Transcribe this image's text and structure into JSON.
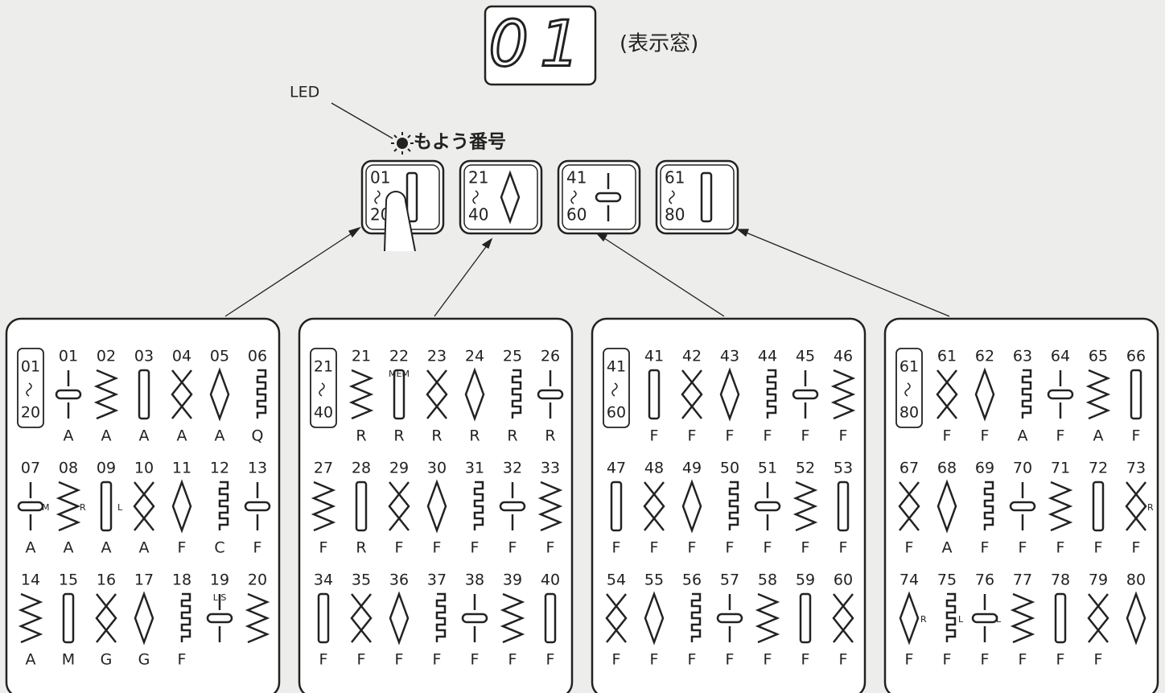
{
  "display": {
    "value": "01",
    "label": "(表示窓)"
  },
  "led_label": "LED",
  "pattern_label": "もよう番号",
  "buttons": [
    {
      "from": "01",
      "to": "20"
    },
    {
      "from": "21",
      "to": "40"
    },
    {
      "from": "41",
      "to": "60"
    },
    {
      "from": "61",
      "to": "80"
    }
  ],
  "panels": [
    {
      "from": "01",
      "to": "20",
      "patterns": [
        {
          "number": "01",
          "letter": "A"
        },
        {
          "number": "02",
          "letter": "A"
        },
        {
          "number": "03",
          "letter": "A"
        },
        {
          "number": "04",
          "letter": "A"
        },
        {
          "number": "05",
          "letter": "A"
        },
        {
          "number": "06",
          "letter": "Q"
        },
        {
          "number": "07",
          "letter": "A",
          "note": "M"
        },
        {
          "number": "08",
          "letter": "A",
          "note": "R"
        },
        {
          "number": "09",
          "letter": "A",
          "note": "L"
        },
        {
          "number": "10",
          "letter": "A"
        },
        {
          "number": "11",
          "letter": "F"
        },
        {
          "number": "12",
          "letter": "C"
        },
        {
          "number": "13",
          "letter": "F"
        },
        {
          "number": "14",
          "letter": "A"
        },
        {
          "number": "15",
          "letter": "M"
        },
        {
          "number": "16",
          "letter": "G"
        },
        {
          "number": "17",
          "letter": "G"
        },
        {
          "number": "18",
          "letter": "F"
        },
        {
          "number": "19",
          "note": "L.S"
        },
        {
          "number": "20"
        }
      ]
    },
    {
      "from": "21",
      "to": "40",
      "patterns": [
        {
          "number": "21",
          "letter": "R"
        },
        {
          "number": "22",
          "letter": "R",
          "note": "MEM"
        },
        {
          "number": "23",
          "letter": "R"
        },
        {
          "number": "24",
          "letter": "R"
        },
        {
          "number": "25",
          "letter": "R"
        },
        {
          "number": "26",
          "letter": "R"
        },
        {
          "number": "27",
          "letter": "F"
        },
        {
          "number": "28",
          "letter": "R"
        },
        {
          "number": "29",
          "letter": "F"
        },
        {
          "number": "30",
          "letter": "F"
        },
        {
          "number": "31",
          "letter": "F"
        },
        {
          "number": "32",
          "letter": "F"
        },
        {
          "number": "33",
          "letter": "F"
        },
        {
          "number": "34",
          "letter": "F"
        },
        {
          "number": "35",
          "letter": "F"
        },
        {
          "number": "36",
          "letter": "F"
        },
        {
          "number": "37",
          "letter": "F"
        },
        {
          "number": "38",
          "letter": "F"
        },
        {
          "number": "39",
          "letter": "F"
        },
        {
          "number": "40",
          "letter": "F"
        }
      ]
    },
    {
      "from": "41",
      "to": "60",
      "patterns": [
        {
          "number": "41",
          "letter": "F"
        },
        {
          "number": "42",
          "letter": "F"
        },
        {
          "number": "43",
          "letter": "F"
        },
        {
          "number": "44",
          "letter": "F"
        },
        {
          "number": "45",
          "letter": "F"
        },
        {
          "number": "46",
          "letter": "F"
        },
        {
          "number": "47",
          "letter": "F"
        },
        {
          "number": "48",
          "letter": "F"
        },
        {
          "number": "49",
          "letter": "F"
        },
        {
          "number": "50",
          "letter": "F"
        },
        {
          "number": "51",
          "letter": "F"
        },
        {
          "number": "52",
          "letter": "F"
        },
        {
          "number": "53",
          "letter": "F"
        },
        {
          "number": "54",
          "letter": "F"
        },
        {
          "number": "55",
          "letter": "F"
        },
        {
          "number": "56",
          "letter": "F"
        },
        {
          "number": "57",
          "letter": "F"
        },
        {
          "number": "58",
          "letter": "F"
        },
        {
          "number": "59",
          "letter": "F"
        },
        {
          "number": "60",
          "letter": "F"
        }
      ]
    },
    {
      "from": "61",
      "to": "80",
      "patterns": [
        {
          "number": "61",
          "letter": "F"
        },
        {
          "number": "62",
          "letter": "F"
        },
        {
          "number": "63",
          "letter": "A"
        },
        {
          "number": "64",
          "letter": "F"
        },
        {
          "number": "65",
          "letter": "A"
        },
        {
          "number": "66",
          "letter": "F"
        },
        {
          "number": "67",
          "letter": "F"
        },
        {
          "number": "68",
          "letter": "A"
        },
        {
          "number": "69",
          "letter": "F"
        },
        {
          "number": "70",
          "letter": "F"
        },
        {
          "number": "71",
          "letter": "F"
        },
        {
          "number": "72",
          "letter": "F"
        },
        {
          "number": "73",
          "letter": "F",
          "note": "R"
        },
        {
          "number": "74",
          "letter": "F",
          "note": "R"
        },
        {
          "number": "75",
          "letter": "F",
          "note": "L"
        },
        {
          "number": "76",
          "letter": "F",
          "note": "L"
        },
        {
          "number": "77",
          "letter": "F"
        },
        {
          "number": "78",
          "letter": "F"
        },
        {
          "number": "79",
          "letter": "F"
        },
        {
          "number": "80"
        }
      ]
    }
  ]
}
